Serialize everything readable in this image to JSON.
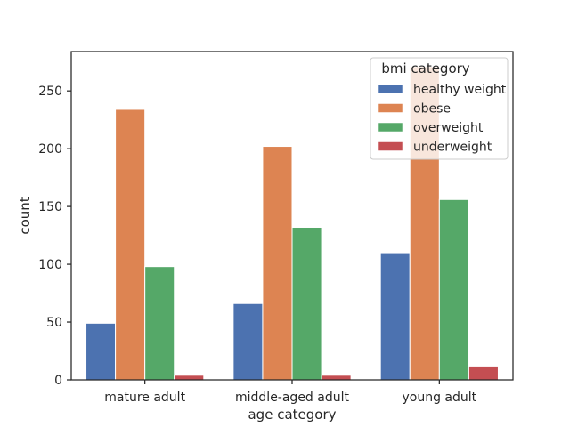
{
  "chart_data": {
    "type": "bar",
    "title": "",
    "xlabel": "age category",
    "ylabel": "count",
    "categories": [
      "mature adult",
      "middle-aged adult",
      "young adult"
    ],
    "series": [
      {
        "name": "healthy weight",
        "color": "#4c72b0",
        "values": [
          49,
          66,
          110
        ]
      },
      {
        "name": "obese",
        "color": "#dd8452",
        "values": [
          234,
          202,
          271
        ]
      },
      {
        "name": "overweight",
        "color": "#55a868",
        "values": [
          98,
          132,
          156
        ]
      },
      {
        "name": "underweight",
        "color": "#c44e52",
        "values": [
          4,
          4,
          12
        ]
      }
    ],
    "ylim": [
      0,
      284
    ],
    "yticks": [
      0,
      50,
      100,
      150,
      200,
      250
    ],
    "grid": false,
    "legend": {
      "title": "bmi category",
      "placement": "top-right"
    }
  }
}
